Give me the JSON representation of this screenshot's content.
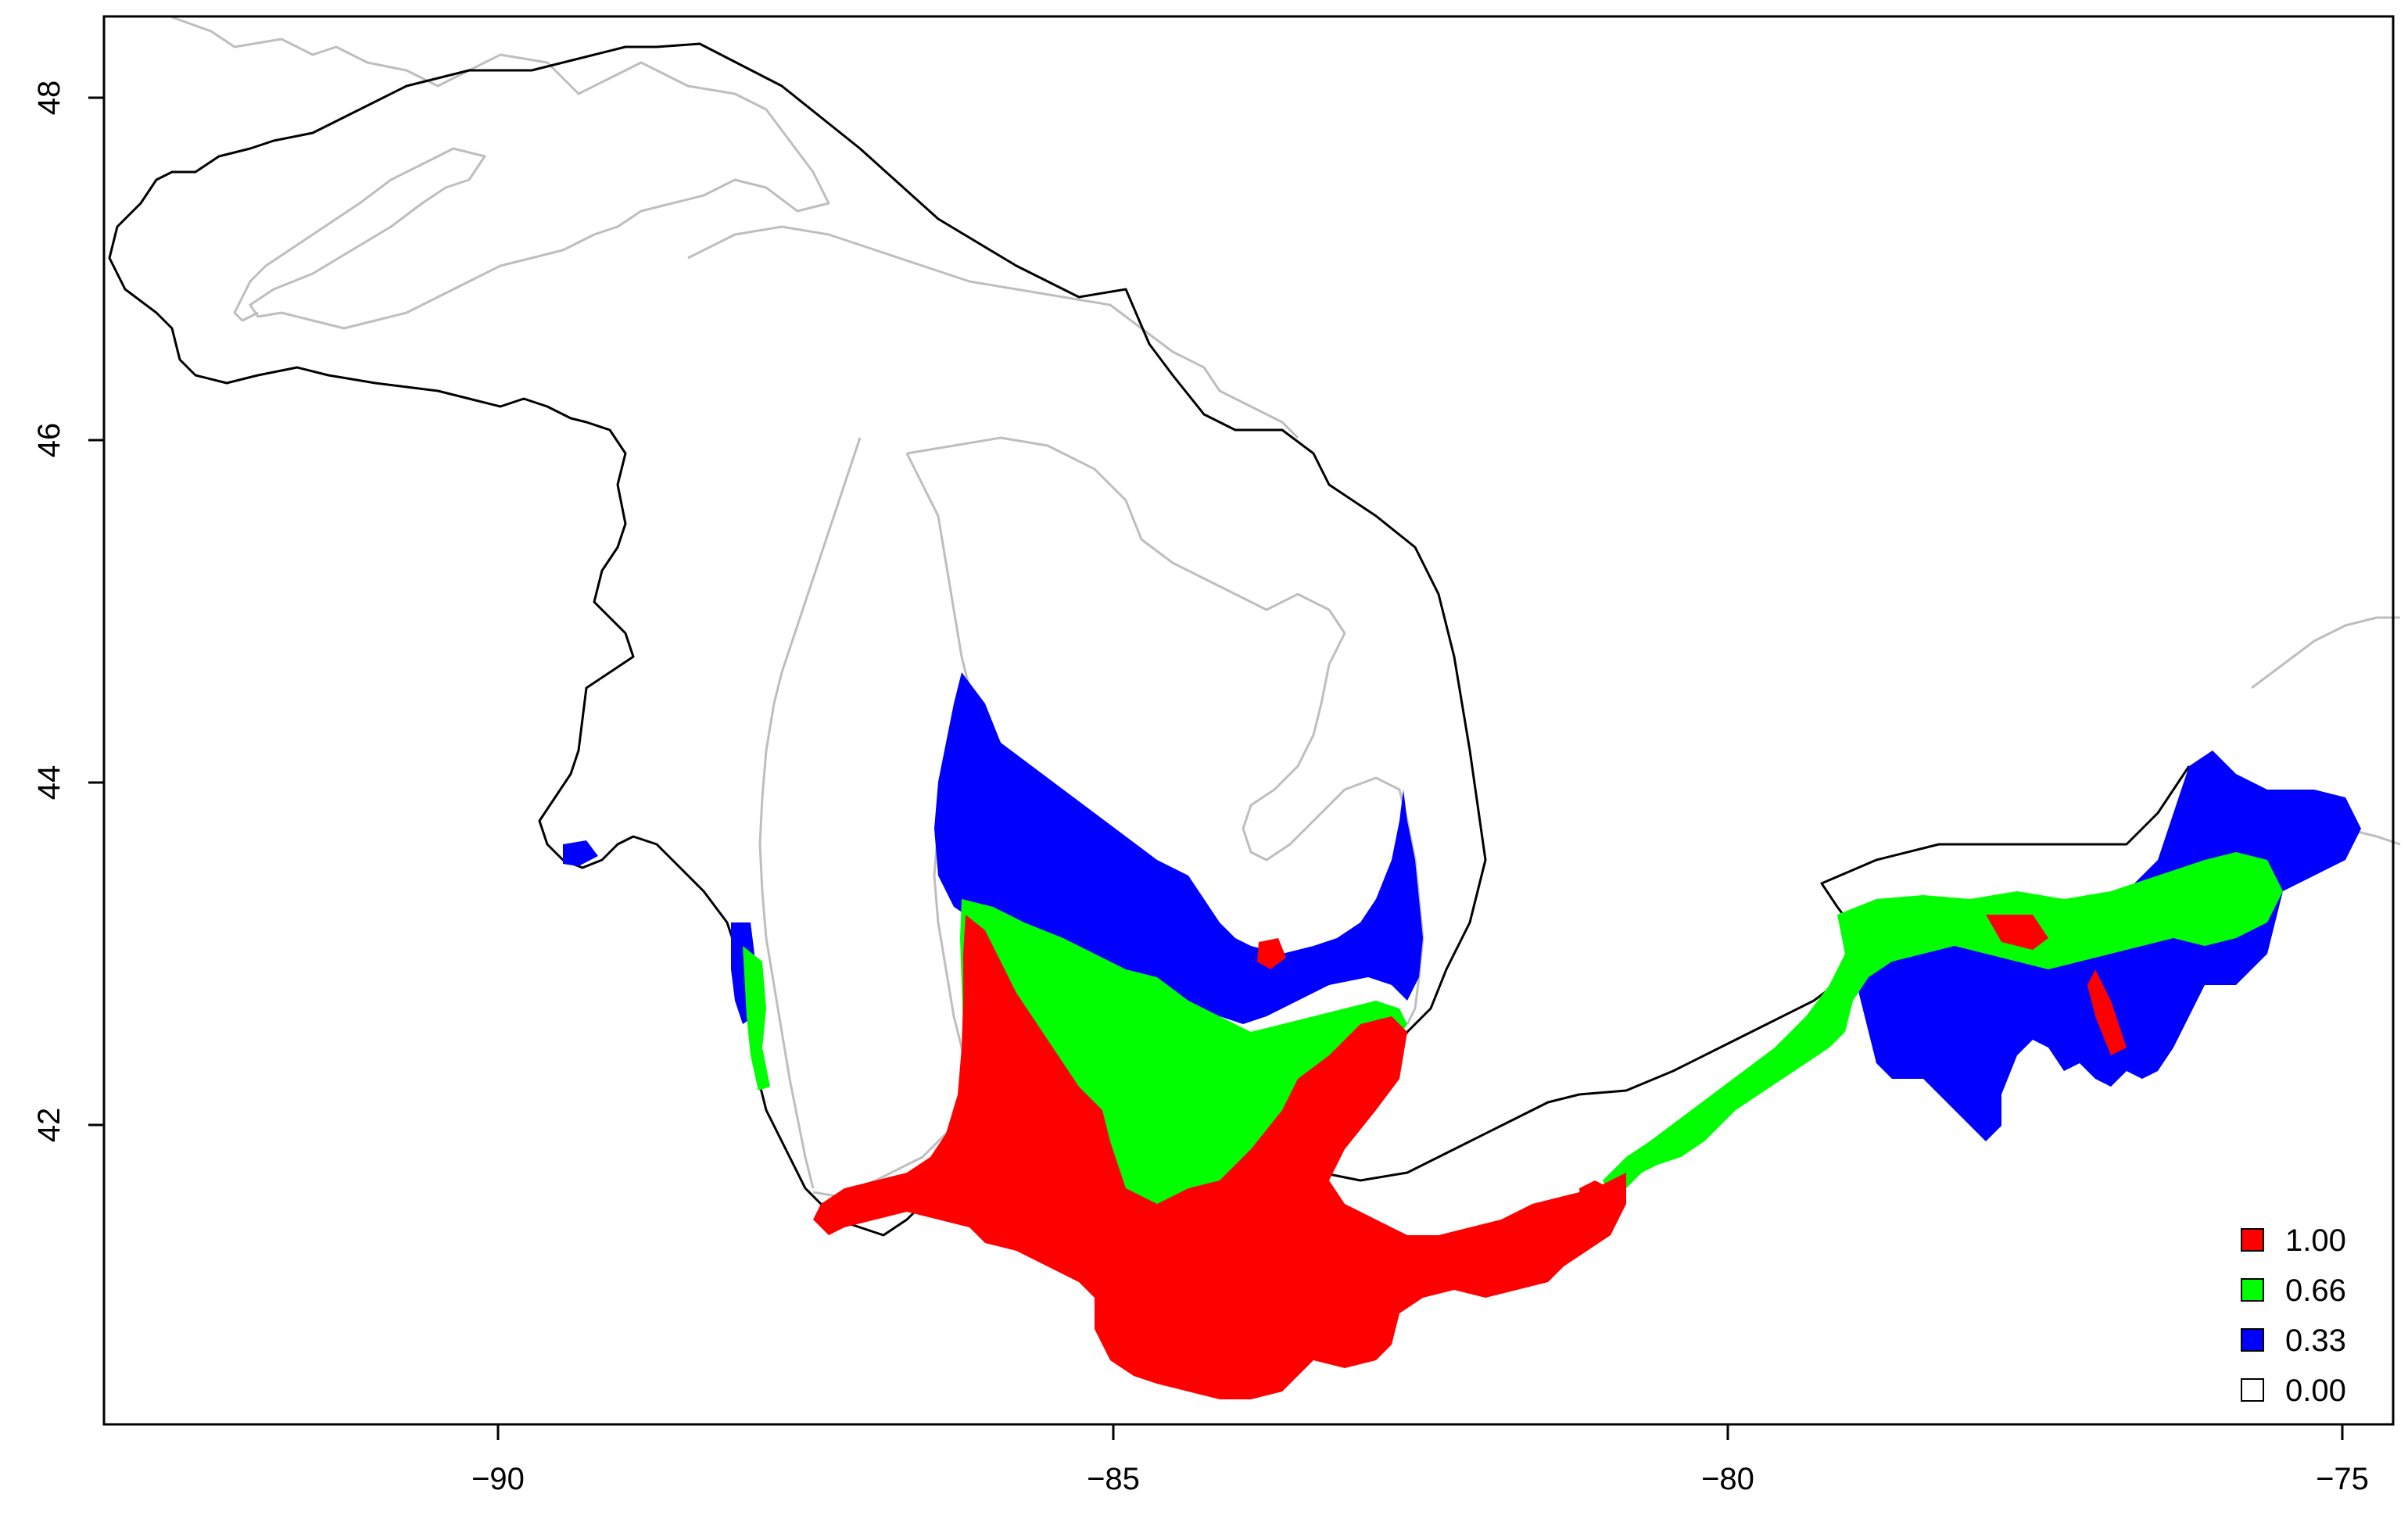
{
  "map": {
    "x_axis": {
      "ticks": [
        -90,
        -85,
        -80,
        -75
      ],
      "tick_labels": [
        "−90",
        "−85",
        "−80",
        "−75"
      ],
      "range": [
        -93.2,
        -74.6
      ]
    },
    "y_axis": {
      "ticks": [
        42,
        44,
        46,
        48
      ],
      "tick_labels": [
        "42",
        "44",
        "46",
        "48"
      ],
      "range": [
        40.3,
        48.5
      ]
    },
    "legend": {
      "position": "bottom-right",
      "entries": [
        {
          "label": "1.00",
          "color": "#ff0000"
        },
        {
          "label": "0.66",
          "color": "#00ff00"
        },
        {
          "label": "0.33",
          "color": "#0000ff"
        },
        {
          "label": "0.00",
          "color": "#ffffff"
        }
      ]
    },
    "colors": {
      "boundary": "#000000",
      "lake_outline": "#bebebe",
      "value_1_00": "#ff0000",
      "value_0_66": "#00ff00",
      "value_0_33": "#0000ff"
    }
  }
}
